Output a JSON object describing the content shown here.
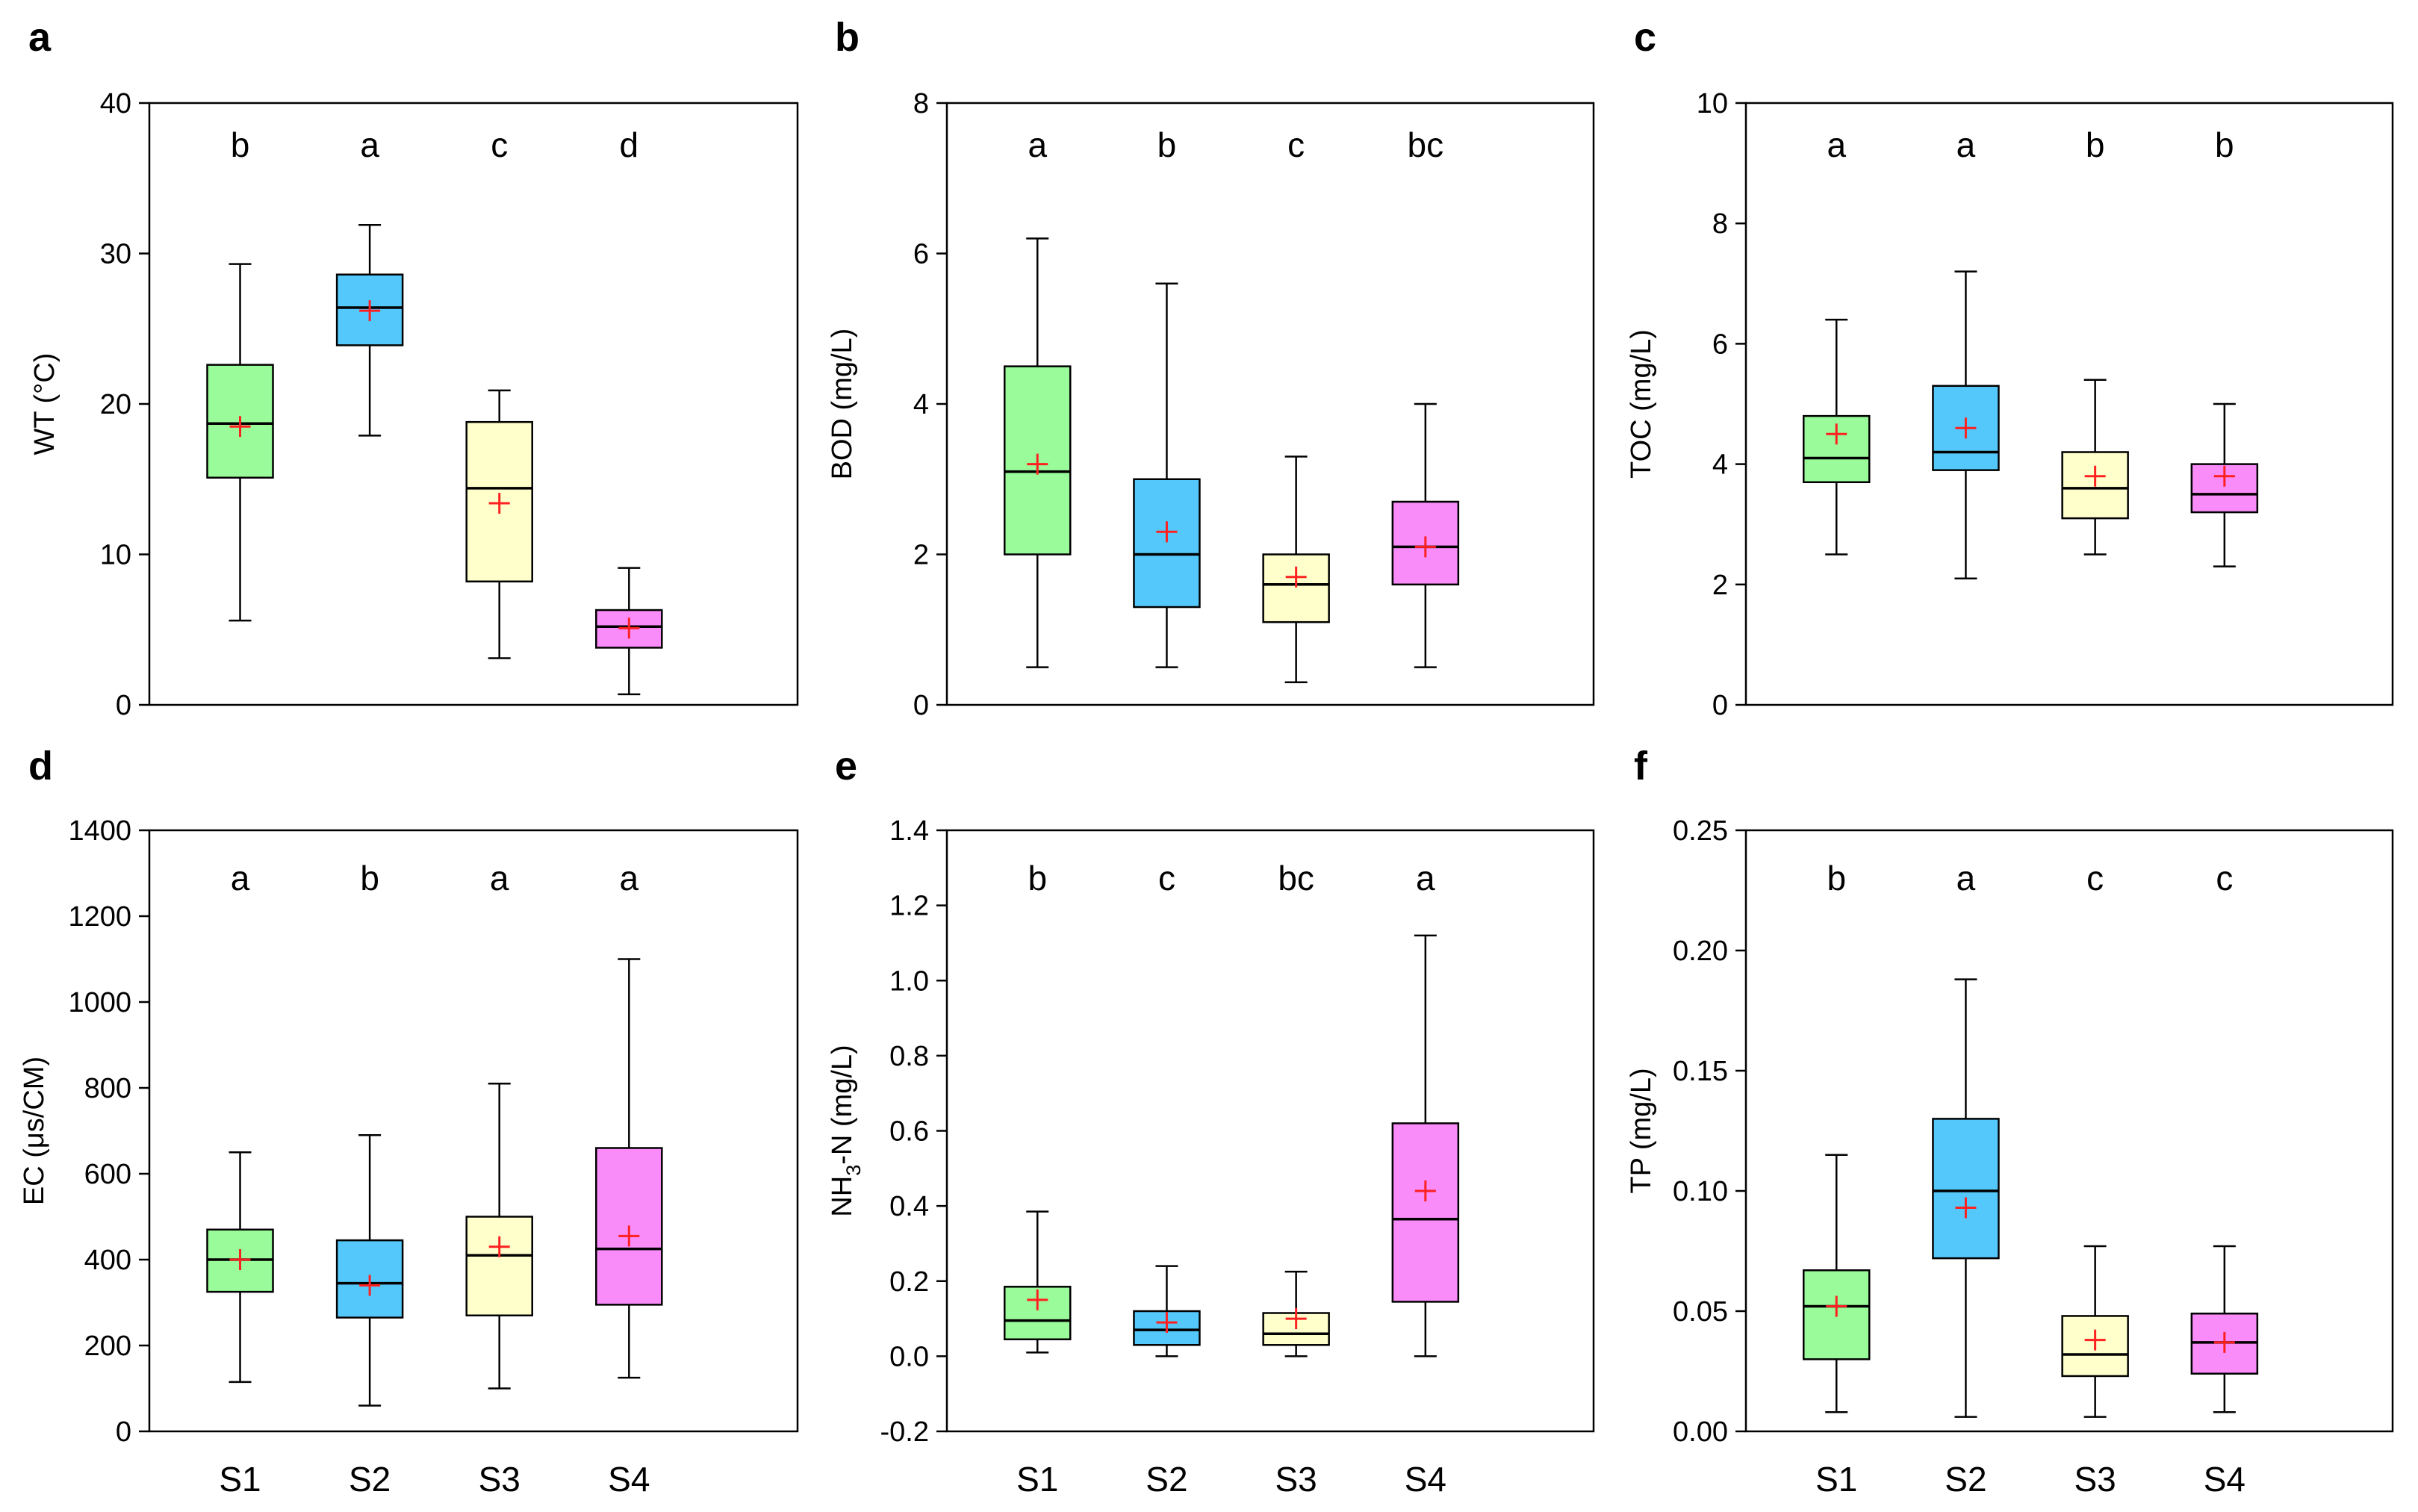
{
  "figure": {
    "categories": [
      "S1",
      "S2",
      "S3",
      "S4"
    ],
    "box_colors": [
      "#99fb99",
      "#55c8fb",
      "#ffffcc",
      "#f98cf9"
    ],
    "mean_color": "#ff2020"
  },
  "chart_data": [
    {
      "panel": "a",
      "type": "box",
      "ylabel": "WT (°C)",
      "ylim": [
        0,
        40
      ],
      "yticks": [
        0,
        10,
        20,
        30,
        40
      ],
      "ytick_labels": [
        "0",
        "10",
        "20",
        "30",
        "40"
      ],
      "show_xlabels": false,
      "boxes": [
        {
          "category": "S1",
          "sig": "b",
          "min": 5.6,
          "q1": 15.1,
          "median": 18.7,
          "q3": 22.6,
          "max": 29.3,
          "mean": 18.5
        },
        {
          "category": "S2",
          "sig": "a",
          "min": 17.9,
          "q1": 23.9,
          "median": 26.4,
          "q3": 28.6,
          "max": 31.9,
          "mean": 26.2
        },
        {
          "category": "S3",
          "sig": "c",
          "min": 3.1,
          "q1": 8.2,
          "median": 14.4,
          "q3": 18.8,
          "max": 20.9,
          "mean": 13.4
        },
        {
          "category": "S4",
          "sig": "d",
          "min": 0.7,
          "q1": 3.8,
          "median": 5.2,
          "q3": 6.3,
          "max": 9.1,
          "mean": 5.1
        }
      ]
    },
    {
      "panel": "b",
      "type": "box",
      "ylabel": "BOD (mg/L)",
      "ylim": [
        0,
        8
      ],
      "yticks": [
        0,
        2,
        4,
        6,
        8
      ],
      "ytick_labels": [
        "0",
        "2",
        "4",
        "6",
        "8"
      ],
      "show_xlabels": false,
      "boxes": [
        {
          "category": "S1",
          "sig": "a",
          "min": 0.5,
          "q1": 2.0,
          "median": 3.1,
          "q3": 4.5,
          "max": 6.2,
          "mean": 3.2
        },
        {
          "category": "S2",
          "sig": "b",
          "min": 0.5,
          "q1": 1.3,
          "median": 2.0,
          "q3": 3.0,
          "max": 5.6,
          "mean": 2.3
        },
        {
          "category": "S3",
          "sig": "c",
          "min": 0.3,
          "q1": 1.1,
          "median": 1.6,
          "q3": 2.0,
          "max": 3.3,
          "mean": 1.7
        },
        {
          "category": "S4",
          "sig": "bc",
          "min": 0.5,
          "q1": 1.6,
          "median": 2.1,
          "q3": 2.7,
          "max": 4.0,
          "mean": 2.1
        }
      ]
    },
    {
      "panel": "c",
      "type": "box",
      "ylabel": "TOC (mg/L)",
      "ylim": [
        0,
        10
      ],
      "yticks": [
        0,
        2,
        4,
        6,
        8,
        10
      ],
      "ytick_labels": [
        "0",
        "2",
        "4",
        "6",
        "8",
        "10"
      ],
      "show_xlabels": false,
      "boxes": [
        {
          "category": "S1",
          "sig": "a",
          "min": 2.5,
          "q1": 3.7,
          "median": 4.1,
          "q3": 4.8,
          "max": 6.4,
          "mean": 4.5
        },
        {
          "category": "S2",
          "sig": "a",
          "min": 2.1,
          "q1": 3.9,
          "median": 4.2,
          "q3": 5.3,
          "max": 7.2,
          "mean": 4.6
        },
        {
          "category": "S3",
          "sig": "b",
          "min": 2.5,
          "q1": 3.1,
          "median": 3.6,
          "q3": 4.2,
          "max": 5.4,
          "mean": 3.8
        },
        {
          "category": "S4",
          "sig": "b",
          "min": 2.3,
          "q1": 3.2,
          "median": 3.5,
          "q3": 4.0,
          "max": 5.0,
          "mean": 3.8
        }
      ]
    },
    {
      "panel": "d",
      "type": "box",
      "ylabel": "EC (μs/CM)",
      "ylim": [
        0,
        1400
      ],
      "yticks": [
        0,
        200,
        400,
        600,
        800,
        1000,
        1200,
        1400
      ],
      "ytick_labels": [
        "0",
        "200",
        "400",
        "600",
        "800",
        "1000",
        "1200",
        "1400"
      ],
      "show_xlabels": true,
      "boxes": [
        {
          "category": "S1",
          "sig": "a",
          "min": 115,
          "q1": 325,
          "median": 400,
          "q3": 470,
          "max": 650,
          "mean": 400
        },
        {
          "category": "S2",
          "sig": "b",
          "min": 60,
          "q1": 265,
          "median": 345,
          "q3": 445,
          "max": 690,
          "mean": 340
        },
        {
          "category": "S3",
          "sig": "a",
          "min": 100,
          "q1": 270,
          "median": 410,
          "q3": 500,
          "max": 810,
          "mean": 430
        },
        {
          "category": "S4",
          "sig": "a",
          "min": 125,
          "q1": 295,
          "median": 425,
          "q3": 660,
          "max": 1100,
          "mean": 455
        }
      ]
    },
    {
      "panel": "e",
      "type": "box",
      "ylabel_main": "NH",
      "ylabel_sub": "3",
      "ylabel_tail": "-N (mg/L)",
      "ylim": [
        -0.2,
        1.4
      ],
      "yticks": [
        -0.2,
        0.0,
        0.2,
        0.4,
        0.6,
        0.8,
        1.0,
        1.2,
        1.4
      ],
      "ytick_labels": [
        "-0.2",
        "0.0",
        "0.2",
        "0.4",
        "0.6",
        "0.8",
        "1.0",
        "1.2",
        "1.4"
      ],
      "show_xlabels": true,
      "boxes": [
        {
          "category": "S1",
          "sig": "b",
          "min": 0.01,
          "q1": 0.045,
          "median": 0.095,
          "q3": 0.185,
          "max": 0.385,
          "mean": 0.15
        },
        {
          "category": "S2",
          "sig": "c",
          "min": 0.0,
          "q1": 0.03,
          "median": 0.07,
          "q3": 0.12,
          "max": 0.24,
          "mean": 0.09
        },
        {
          "category": "S3",
          "sig": "bc",
          "min": 0.0,
          "q1": 0.03,
          "median": 0.06,
          "q3": 0.115,
          "max": 0.225,
          "mean": 0.1
        },
        {
          "category": "S4",
          "sig": "a",
          "min": 0.0,
          "q1": 0.145,
          "median": 0.365,
          "q3": 0.62,
          "max": 1.12,
          "mean": 0.44
        }
      ]
    },
    {
      "panel": "f",
      "type": "box",
      "ylabel": "TP (mg/L)",
      "ylim": [
        0,
        0.25
      ],
      "yticks": [
        0,
        0.05,
        0.1,
        0.15,
        0.2,
        0.25
      ],
      "ytick_labels": [
        "0.00",
        "0.05",
        "0.10",
        "0.15",
        "0.20",
        "0.25"
      ],
      "show_xlabels": true,
      "boxes": [
        {
          "category": "S1",
          "sig": "b",
          "min": 0.008,
          "q1": 0.03,
          "median": 0.052,
          "q3": 0.067,
          "max": 0.115,
          "mean": 0.052
        },
        {
          "category": "S2",
          "sig": "a",
          "min": 0.006,
          "q1": 0.072,
          "median": 0.1,
          "q3": 0.13,
          "max": 0.188,
          "mean": 0.093
        },
        {
          "category": "S3",
          "sig": "c",
          "min": 0.006,
          "q1": 0.023,
          "median": 0.032,
          "q3": 0.048,
          "max": 0.077,
          "mean": 0.038
        },
        {
          "category": "S4",
          "sig": "c",
          "min": 0.008,
          "q1": 0.024,
          "median": 0.037,
          "q3": 0.049,
          "max": 0.077,
          "mean": 0.037
        }
      ]
    }
  ]
}
